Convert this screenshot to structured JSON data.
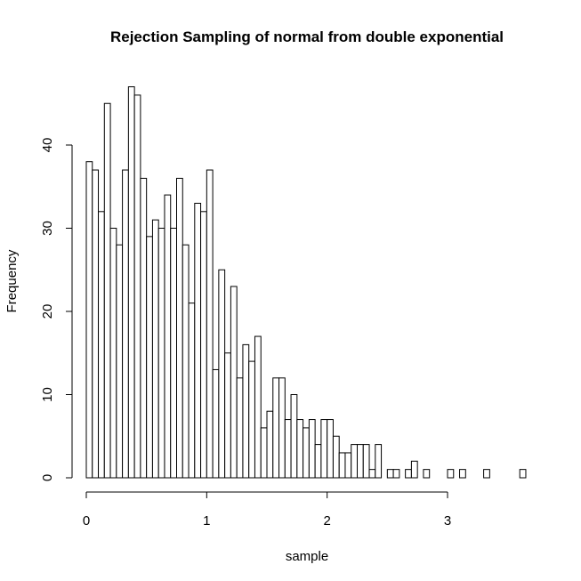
{
  "chart_data": {
    "type": "bar",
    "title": "Rejection Sampling of normal from double exponential",
    "xlabel": "sample",
    "ylabel": "Frequency",
    "bin_width": 0.05,
    "bin_start": 0,
    "xlim": [
      0,
      3.65
    ],
    "ylim": [
      0,
      47
    ],
    "x_ticks": [
      0,
      1,
      2,
      3
    ],
    "x_tick_labels": [
      "0",
      "1",
      "2",
      "3"
    ],
    "y_ticks": [
      0,
      10,
      20,
      30,
      40
    ],
    "y_tick_labels": [
      "0",
      "10",
      "20",
      "30",
      "40"
    ],
    "grid": false,
    "legend": "none",
    "bin_edges_start": [
      0,
      0.05,
      0.1,
      0.15,
      0.2,
      0.25,
      0.3,
      0.35,
      0.4,
      0.45,
      0.5,
      0.55,
      0.6,
      0.65,
      0.7,
      0.75,
      0.8,
      0.85,
      0.9,
      0.95,
      1.0,
      1.05,
      1.1,
      1.15,
      1.2,
      1.25,
      1.3,
      1.35,
      1.4,
      1.45,
      1.5,
      1.55,
      1.6,
      1.65,
      1.7,
      1.75,
      1.8,
      1.85,
      1.9,
      1.95,
      2.0,
      2.05,
      2.1,
      2.15,
      2.2,
      2.25,
      2.3,
      2.35,
      2.4,
      2.45,
      2.5,
      2.55,
      2.6,
      2.65,
      2.7,
      2.75,
      2.8,
      2.85,
      2.9,
      2.95,
      3.0,
      3.05,
      3.1,
      3.15,
      3.2,
      3.25,
      3.3,
      3.35,
      3.4,
      3.45,
      3.5,
      3.55,
      3.6
    ],
    "values": [
      38,
      37,
      32,
      45,
      30,
      28,
      37,
      47,
      46,
      36,
      29,
      31,
      30,
      34,
      30,
      36,
      28,
      21,
      33,
      32,
      37,
      13,
      25,
      15,
      23,
      12,
      16,
      14,
      17,
      6,
      8,
      12,
      12,
      7,
      10,
      7,
      6,
      7,
      4,
      7,
      7,
      5,
      3,
      3,
      4,
      4,
      4,
      1,
      4,
      0,
      1,
      1,
      0,
      1,
      2,
      0,
      1,
      0,
      0,
      0,
      1,
      0,
      1,
      0,
      0,
      0,
      1,
      0,
      0,
      0,
      0,
      0,
      1
    ]
  }
}
